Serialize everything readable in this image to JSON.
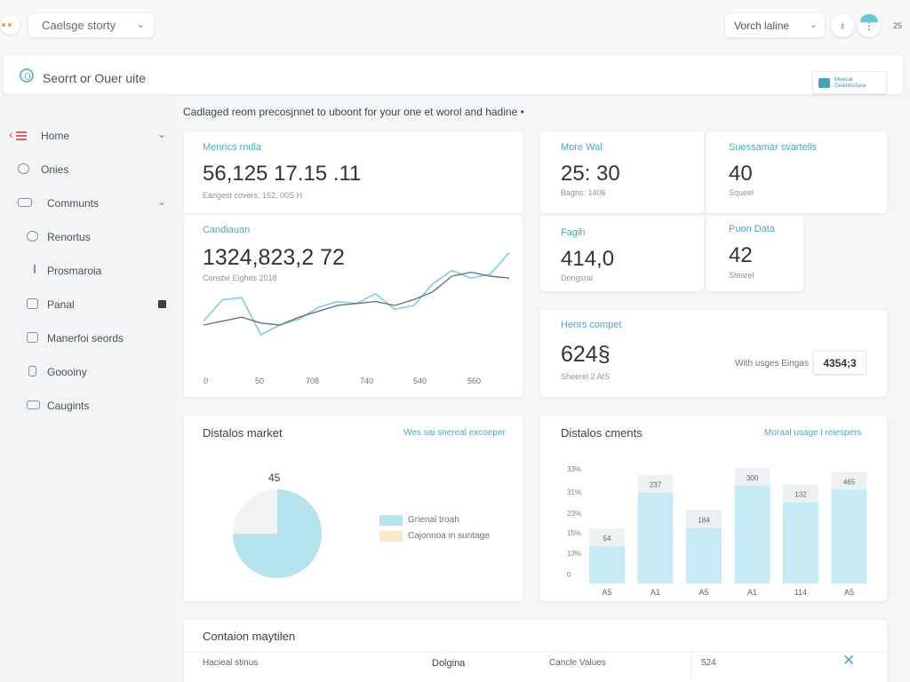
{
  "header": {
    "workspace_select": "Caelsge storty",
    "view_select": "Vorch laline",
    "time": "25"
  },
  "search": {
    "value": "Seorrt or Ouer uite",
    "promo_text": "Mewcal Oeaintocface"
  },
  "sidebar": {
    "items": [
      {
        "label": "Home"
      },
      {
        "label": "Onies"
      },
      {
        "label": "Communts"
      },
      {
        "label": "Renortus"
      },
      {
        "label": "Prosmaroia"
      },
      {
        "label": "Panal"
      },
      {
        "label": "Manerfoi seords"
      },
      {
        "label": "Goooiny"
      },
      {
        "label": "Caugints"
      }
    ]
  },
  "subtitle": "Cadlaged reom precosjnnet to uboont for your one et worol and hadine",
  "metrics": {
    "m1": {
      "label": "Menrics rndla",
      "value": "56,125 17.15 .11",
      "sub": "Eangest covers, 152, 00S H"
    },
    "m2": {
      "label": "Candiauan",
      "value": "1324,823,2 72",
      "sub": "Consbe Eighes 2018"
    },
    "m3": {
      "label": "More Wal",
      "value": "25: 30",
      "sub": "Baghs: 1406"
    },
    "m4": {
      "label": "Suessamar svartells",
      "value": "40",
      "sub": "Squeel"
    },
    "m5": {
      "label": "Fagih",
      "value": "414,0",
      "sub": "Dongsral"
    },
    "m6": {
      "label": "Puon Data",
      "value": "42",
      "sub": "Stearel"
    },
    "m7": {
      "label": "Henrs compet",
      "value": "624§",
      "sub": "Sheerel 2 AIS",
      "note": "With usges Eingas",
      "badge": "4354;3"
    }
  },
  "line_chart": {
    "x_ticks": [
      "0",
      "50",
      "708",
      "740",
      "540",
      "560"
    ],
    "series": [
      {
        "color": "#7ccfe0",
        "values": [
          22,
          33,
          34,
          15,
          20,
          23,
          29,
          32,
          31,
          36,
          28,
          30,
          41,
          48,
          44,
          46,
          57
        ]
      },
      {
        "color": "#6c7378",
        "values": [
          20,
          22,
          24,
          21,
          20,
          24,
          27,
          30,
          31,
          32,
          30,
          33,
          37,
          45,
          47,
          45,
          44
        ]
      }
    ]
  },
  "pie_panel": {
    "title": "Distalos market",
    "link": "Wes sai snereal excoeper",
    "label_value": "45",
    "legend": [
      {
        "text": "Grienal troah",
        "color": "#b7e4ef"
      },
      {
        "text": "Cajonnoa in suntage",
        "color": "#fbe7c9"
      }
    ],
    "slices": [
      {
        "value": 75,
        "color": "#b5e3ee"
      },
      {
        "value": 25,
        "color": "#f1f3f4"
      }
    ]
  },
  "bar_panel": {
    "title": "Distalos cments",
    "link": "Moraal usage l reiespers",
    "y_ticks": [
      "33%",
      "31%",
      "23%",
      "15%",
      "13%",
      "0"
    ],
    "chart_data": {
      "type": "bar",
      "categories": [
        "A5",
        "A1",
        "A5",
        "A1",
        "114",
        "A5"
      ],
      "values": [
        54,
        237,
        184,
        300,
        132,
        465
      ],
      "ratios": [
        0.38,
        0.93,
        0.57,
        1.0,
        0.83,
        0.96
      ]
    }
  },
  "table": {
    "title": "Contaion maytilen",
    "headers": [
      "Hacieal stinus",
      "Dolgina",
      "Cancle Values",
      "524"
    ]
  },
  "colors": {
    "accent": "#4aa9bf",
    "bar_fill": "#c6ebf4",
    "bar_cap": "#eef1f2"
  }
}
